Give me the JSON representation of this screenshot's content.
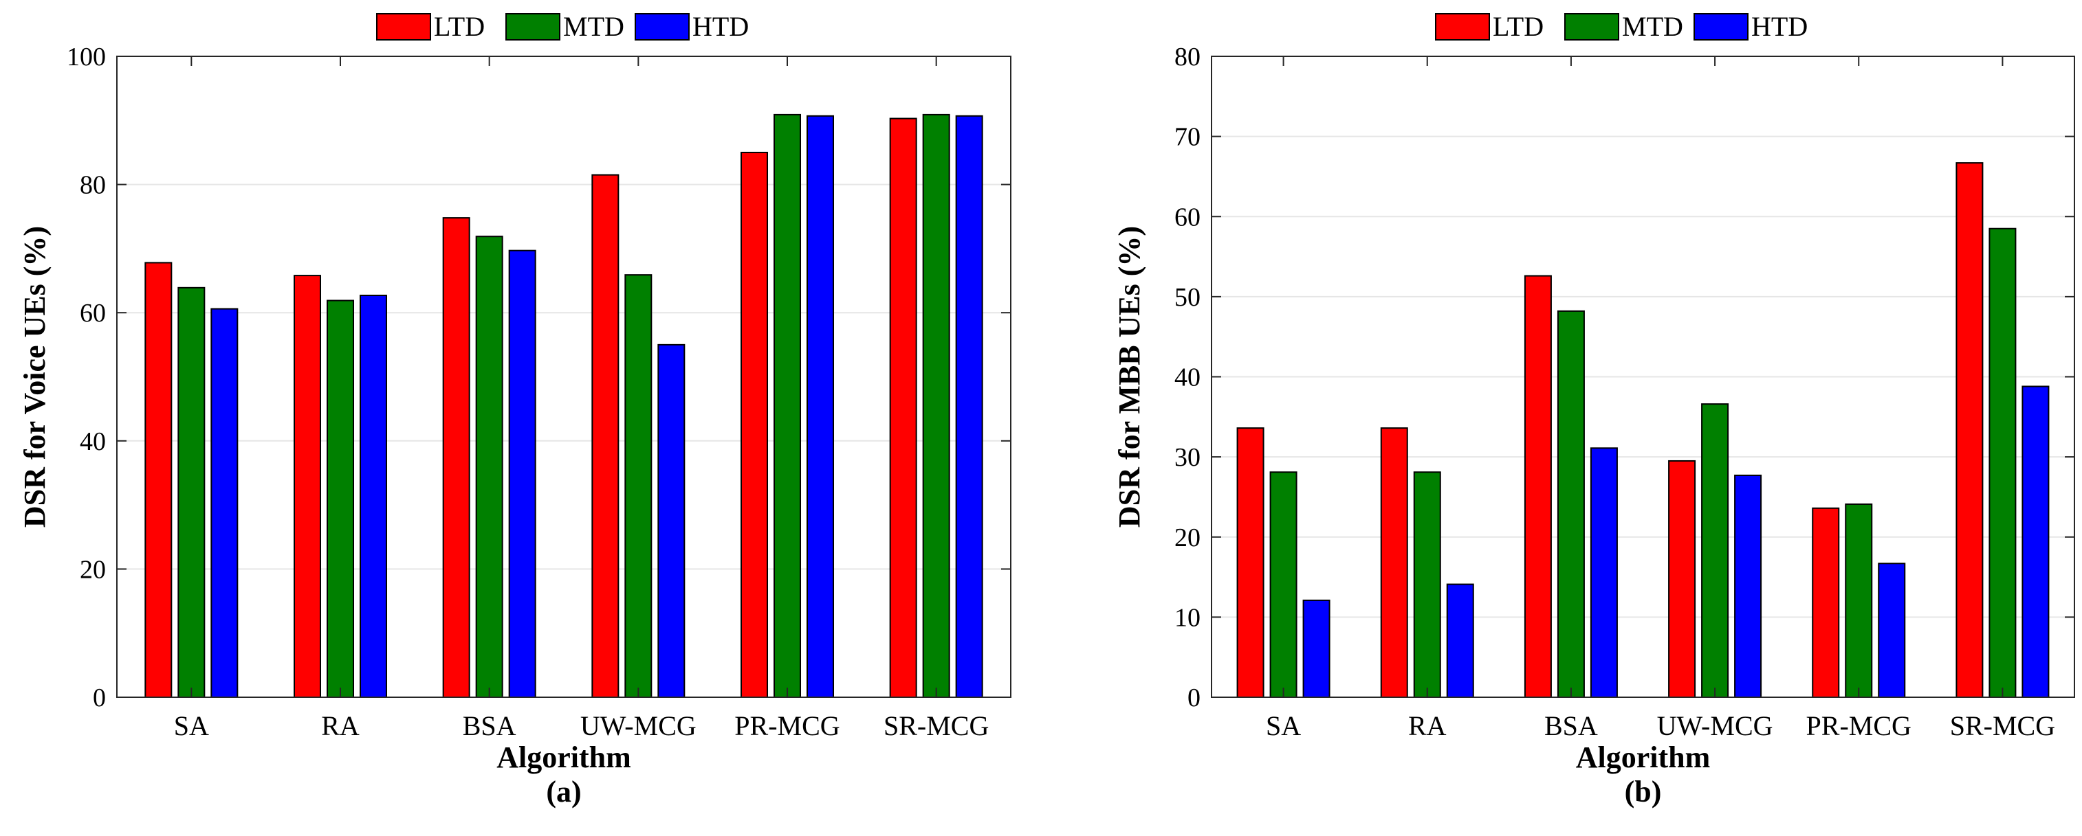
{
  "colors": {
    "LTD": "#ff0000",
    "MTD": "#008000",
    "HTD": "#0000ff",
    "axis": "#262626",
    "grid": "#e6e6e6"
  },
  "chart_data": [
    {
      "type": "bar",
      "panel_label": "(a)",
      "xlabel": "Algorithm",
      "ylabel": "DSR for Voice UEs (%)",
      "categories": [
        "SA",
        "RA",
        "BSA",
        "UW-MCG",
        "PR-MCG",
        "SR-MCG"
      ],
      "ylim": [
        0,
        100
      ],
      "yticks": [
        0,
        20,
        40,
        60,
        80,
        100
      ],
      "legend_position": "top-center",
      "grid": "horizontal",
      "series": [
        {
          "name": "LTD",
          "values": [
            67.8,
            65.8,
            74.8,
            81.5,
            85.0,
            90.3
          ]
        },
        {
          "name": "MTD",
          "values": [
            63.9,
            61.9,
            71.9,
            65.9,
            90.9,
            90.9
          ]
        },
        {
          "name": "HTD",
          "values": [
            60.6,
            62.7,
            69.7,
            55.0,
            90.7,
            90.7
          ]
        }
      ]
    },
    {
      "type": "bar",
      "panel_label": "(b)",
      "xlabel": "Algorithm",
      "ylabel": "DSR for MBB UEs (%)",
      "categories": [
        "SA",
        "RA",
        "BSA",
        "UW-MCG",
        "PR-MCG",
        "SR-MCG"
      ],
      "ylim": [
        0,
        80
      ],
      "yticks": [
        0,
        10,
        20,
        30,
        40,
        50,
        60,
        70,
        80
      ],
      "legend_position": "top-center",
      "grid": "horizontal",
      "series": [
        {
          "name": "LTD",
          "values": [
            33.6,
            33.6,
            52.6,
            29.5,
            23.6,
            66.7
          ]
        },
        {
          "name": "MTD",
          "values": [
            28.1,
            28.1,
            48.2,
            36.6,
            24.1,
            58.5
          ]
        },
        {
          "name": "HTD",
          "values": [
            12.1,
            14.1,
            31.1,
            27.7,
            16.7,
            38.8
          ]
        }
      ]
    }
  ]
}
